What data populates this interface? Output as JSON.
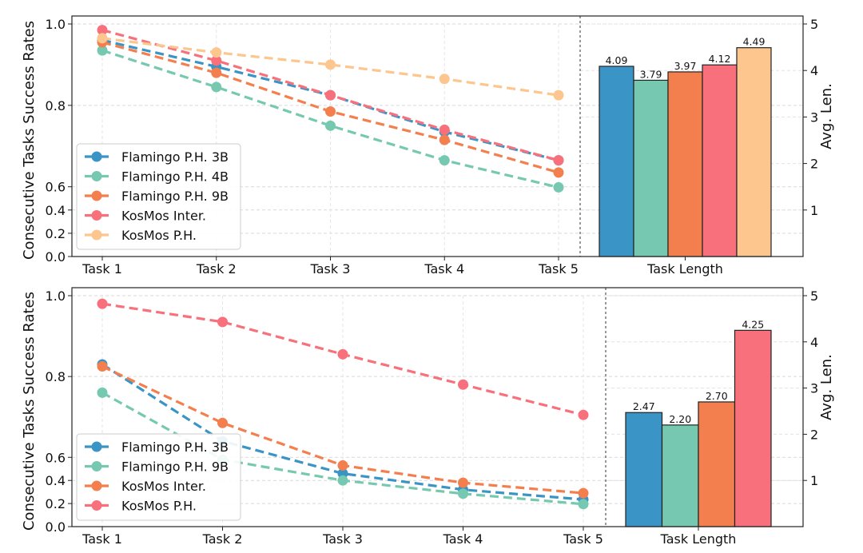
{
  "chart_data": [
    {
      "type": "line+bar",
      "ylabel": "Consecutive Tasks Success Rates",
      "y2label": "Avg. Len.",
      "xlabel_right": "Task Length",
      "categories": [
        "Task 1",
        "Task 2",
        "Task 3",
        "Task 4",
        "Task 5"
      ],
      "y_ticks": [
        "0.0",
        "0.2",
        "0.4",
        "0.6",
        "0.8",
        "1.0"
      ],
      "y2_ticks": [
        "1",
        "2",
        "3",
        "4",
        "5"
      ],
      "ylim": [
        0,
        1
      ],
      "y2lim": [
        0,
        5
      ],
      "legend": "lower-left",
      "grid": true,
      "series": [
        {
          "name": "Flamingo P.H. 3B",
          "color": "#3a94c5",
          "values": [
            0.96,
            0.895,
            0.825,
            0.735,
            0.665
          ]
        },
        {
          "name": "Flamingo P.H. 4B",
          "color": "#76c9b0",
          "values": [
            0.935,
            0.845,
            0.75,
            0.665,
            0.595
          ]
        },
        {
          "name": "Flamingo P.H. 9B",
          "color": "#f47f4e",
          "values": [
            0.955,
            0.88,
            0.785,
            0.715,
            0.635
          ]
        },
        {
          "name": "KosMos Inter.",
          "color": "#f8707b",
          "values": [
            0.985,
            0.91,
            0.825,
            0.74,
            0.665
          ]
        },
        {
          "name": "KosMos P.H.",
          "color": "#fcc68e",
          "values": [
            0.965,
            0.93,
            0.9,
            0.865,
            0.825
          ]
        }
      ],
      "bars": [
        {
          "name": "Flamingo P.H. 3B",
          "color": "#3a94c5",
          "value": 4.09,
          "label": "4.09"
        },
        {
          "name": "Flamingo P.H. 4B",
          "color": "#76c9b0",
          "value": 3.79,
          "label": "3.79"
        },
        {
          "name": "Flamingo P.H. 9B",
          "color": "#f47f4e",
          "value": 3.97,
          "label": "3.97"
        },
        {
          "name": "KosMos Inter.",
          "color": "#f8707b",
          "value": 4.12,
          "label": "4.12"
        },
        {
          "name": "KosMos P.H.",
          "color": "#fcc68e",
          "value": 4.49,
          "label": "4.49"
        }
      ]
    },
    {
      "type": "line+bar",
      "ylabel": "Consecutive Tasks Success Rates",
      "y2label": "Avg. Len.",
      "xlabel_right": "Task Length",
      "categories": [
        "Task 1",
        "Task 2",
        "Task 3",
        "Task 4",
        "Task 5"
      ],
      "y_ticks": [
        "0.0",
        "0.2",
        "0.4",
        "0.6",
        "0.8",
        "1.0"
      ],
      "y2_ticks": [
        "1",
        "2",
        "3",
        "4",
        "5"
      ],
      "ylim": [
        0,
        1
      ],
      "y2lim": [
        0,
        5
      ],
      "legend": "lower-left",
      "grid": true,
      "series": [
        {
          "name": "Flamingo P.H. 3B",
          "color": "#3a94c5",
          "values": [
            0.83,
            0.64,
            0.46,
            0.32,
            0.235
          ]
        },
        {
          "name": "Flamingo P.H. 9B",
          "color": "#76c9b0",
          "values": [
            0.76,
            0.58,
            0.4,
            0.285,
            0.195
          ]
        },
        {
          "name": "KosMos Inter.",
          "color": "#f47f4e",
          "values": [
            0.825,
            0.685,
            0.53,
            0.38,
            0.29
          ]
        },
        {
          "name": "KosMos P.H.",
          "color": "#f8707b",
          "values": [
            0.98,
            0.935,
            0.855,
            0.78,
            0.705
          ]
        }
      ],
      "bars": [
        {
          "name": "Flamingo P.H. 3B",
          "color": "#3a94c5",
          "value": 2.47,
          "label": "2.47"
        },
        {
          "name": "Flamingo P.H. 9B",
          "color": "#76c9b0",
          "value": 2.2,
          "label": "2.20"
        },
        {
          "name": "KosMos Inter.",
          "color": "#f47f4e",
          "value": 2.7,
          "label": "2.70"
        },
        {
          "name": "KosMos P.H.",
          "color": "#f8707b",
          "value": 4.25,
          "label": "4.25"
        }
      ]
    }
  ]
}
